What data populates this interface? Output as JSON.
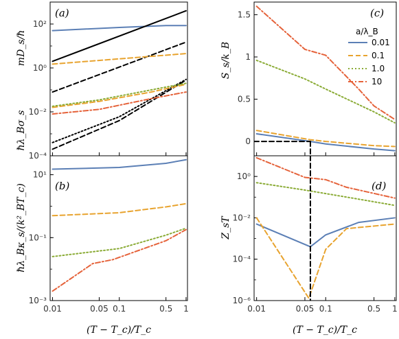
{
  "chart_data": [
    {
      "panel": "a",
      "type": "line",
      "panel_label": "(a)",
      "xscale": "log",
      "yscale": "log",
      "xlim": [
        0.0092,
        1.05
      ],
      "ylim": [
        0.0001,
        1000
      ],
      "xticks": [],
      "yticks": [
        {
          "v": 0.0001,
          "label": "10⁻⁴"
        },
        {
          "v": 0.01,
          "label": "10⁻²"
        },
        {
          "v": 1,
          "label": "10⁰"
        },
        {
          "v": 100,
          "label": "10²"
        }
      ],
      "ylabel_lower": "ħλ_Bσ_s",
      "ylabel_upper": "mD_s/ħ",
      "series": [
        {
          "color": "#5b7fb5",
          "dash": "",
          "points": [
            [
              0.01,
              50
            ],
            [
              0.1,
              70
            ],
            [
              0.5,
              85
            ],
            [
              1,
              85
            ]
          ]
        },
        {
          "color": "#000000",
          "dash": "",
          "points": [
            [
              0.01,
              2
            ],
            [
              1,
              400
            ]
          ]
        },
        {
          "color": "#000000",
          "dash": "7,4",
          "points": [
            [
              0.01,
              0.08
            ],
            [
              1,
              15
            ]
          ]
        },
        {
          "color": "#000000",
          "dash": "7,4",
          "points": [
            [
              0.01,
              0.0002
            ],
            [
              0.1,
              0.004
            ],
            [
              1,
              0.28
            ]
          ]
        },
        {
          "color": "#000000",
          "dash": "2,3",
          "points": [
            [
              0.01,
              0.0004
            ],
            [
              0.1,
              0.006
            ],
            [
              1,
              0.3
            ]
          ]
        },
        {
          "color": "#e8a32e",
          "dash": "7,4",
          "points": [
            [
              0.01,
              1.5
            ],
            [
              1,
              4.5
            ]
          ]
        },
        {
          "color": "#e8a32e",
          "dash": "7,4",
          "points": [
            [
              0.01,
              0.016
            ],
            [
              0.05,
              0.03
            ],
            [
              0.3,
              0.08
            ],
            [
              1,
              0.18
            ]
          ]
        },
        {
          "color": "#8aab35",
          "dash": "2,3",
          "points": [
            [
              0.01,
              0.018
            ],
            [
              0.05,
              0.035
            ],
            [
              0.3,
              0.1
            ],
            [
              1,
              0.2
            ]
          ]
        },
        {
          "color": "#e5623a",
          "dash": "7,3,2,3",
          "points": [
            [
              0.01,
              0.008
            ],
            [
              0.05,
              0.013
            ],
            [
              0.3,
              0.04
            ],
            [
              1,
              0.08
            ]
          ]
        }
      ]
    },
    {
      "panel": "b",
      "type": "line",
      "panel_label": "(b)",
      "xscale": "log",
      "yscale": "log",
      "xlim": [
        0.0092,
        1.05
      ],
      "ylim": [
        0.001,
        40
      ],
      "xticks": [
        {
          "v": 0.01,
          "label": "0.01"
        },
        {
          "v": 0.05,
          "label": "0.05"
        },
        {
          "v": 0.1,
          "label": "0.1"
        },
        {
          "v": 0.5,
          "label": "0.5"
        },
        {
          "v": 1,
          "label": "1"
        }
      ],
      "yticks": [
        {
          "v": 0.001,
          "label": "10⁻³"
        },
        {
          "v": 0.1,
          "label": "10⁻¹"
        },
        {
          "v": 10,
          "label": "10¹"
        }
      ],
      "ylabel": "ħλ_Bκ_s/(k²_BT_c)",
      "xlabel": "(T − T_c)/T_c",
      "series": [
        {
          "color": "#5b7fb5",
          "dash": "",
          "points": [
            [
              0.01,
              15
            ],
            [
              0.1,
              17
            ],
            [
              0.5,
              23
            ],
            [
              1,
              30
            ]
          ]
        },
        {
          "color": "#e8a32e",
          "dash": "7,4",
          "points": [
            [
              0.01,
              0.5
            ],
            [
              0.1,
              0.62
            ],
            [
              0.5,
              0.95
            ],
            [
              1,
              1.2
            ]
          ]
        },
        {
          "color": "#8aab35",
          "dash": "2,3",
          "points": [
            [
              0.01,
              0.025
            ],
            [
              0.1,
              0.045
            ],
            [
              0.5,
              0.12
            ],
            [
              1,
              0.2
            ]
          ]
        },
        {
          "color": "#e5623a",
          "dash": "7,3,2,3",
          "points": [
            [
              0.01,
              0.002
            ],
            [
              0.04,
              0.015
            ],
            [
              0.08,
              0.02
            ],
            [
              0.5,
              0.08
            ],
            [
              1,
              0.18
            ]
          ]
        }
      ]
    },
    {
      "panel": "c",
      "type": "line",
      "panel_label": "(c)",
      "xscale": "log",
      "yscale": "linear",
      "xlim": [
        0.0092,
        1.05
      ],
      "ylim": [
        -0.17,
        1.65
      ],
      "xticks": [],
      "yticks": [
        {
          "v": 0,
          "label": "0"
        },
        {
          "v": 0.5,
          "label": "0.5"
        },
        {
          "v": 1,
          "label": "1"
        },
        {
          "v": 1.5,
          "label": "1.5"
        }
      ],
      "ylabel": "S_s/k_B",
      "legend": {
        "title": "a/λ_B",
        "placement": "upper-right",
        "entries": [
          "0.01",
          "0.1",
          "1.0",
          "10"
        ]
      },
      "series": [
        {
          "color": "#5b7fb5",
          "dash": "",
          "points": [
            [
              0.01,
              0.09
            ],
            [
              0.06,
              0.0
            ],
            [
              0.1,
              -0.03
            ],
            [
              0.5,
              -0.09
            ],
            [
              1,
              -0.11
            ]
          ]
        },
        {
          "color": "#e8a32e",
          "dash": "7,4",
          "points": [
            [
              0.01,
              0.13
            ],
            [
              0.06,
              0.02
            ],
            [
              0.1,
              0.0
            ],
            [
              0.5,
              -0.05
            ],
            [
              1,
              -0.06
            ]
          ]
        },
        {
          "color": "#8aab35",
          "dash": "2,3",
          "points": [
            [
              0.01,
              0.96
            ],
            [
              0.05,
              0.74
            ],
            [
              0.1,
              0.62
            ],
            [
              0.5,
              0.35
            ],
            [
              1,
              0.22
            ]
          ]
        },
        {
          "color": "#e5623a",
          "dash": "7,3,2,3",
          "points": [
            [
              0.01,
              1.6
            ],
            [
              0.05,
              1.09
            ],
            [
              0.1,
              1.02
            ],
            [
              0.3,
              0.62
            ],
            [
              0.5,
              0.42
            ],
            [
              1,
              0.26
            ]
          ]
        },
        {
          "color": "#000000",
          "dash": "7,4",
          "points": [
            [
              0.0092,
              0
            ],
            [
              0.06,
              0
            ]
          ]
        },
        {
          "color": "#000000",
          "dash": "7,4",
          "points": [
            [
              0.06,
              0
            ],
            [
              0.06,
              -0.17
            ]
          ]
        }
      ]
    },
    {
      "panel": "d",
      "type": "line",
      "panel_label": "(d)",
      "xscale": "log",
      "yscale": "log",
      "xlim": [
        0.0092,
        1.05
      ],
      "ylim": [
        1e-06,
        10
      ],
      "xticks": [
        {
          "v": 0.01,
          "label": "0.01"
        },
        {
          "v": 0.05,
          "label": "0.05"
        },
        {
          "v": 0.1,
          "label": "0.1"
        },
        {
          "v": 0.5,
          "label": "0.5"
        },
        {
          "v": 1,
          "label": "1"
        }
      ],
      "yticks": [
        {
          "v": 1e-06,
          "label": "10⁻⁶"
        },
        {
          "v": 0.0001,
          "label": "10⁻⁴"
        },
        {
          "v": 0.01,
          "label": "10⁻²"
        },
        {
          "v": 1,
          "label": "10⁰"
        }
      ],
      "ylabel": "Z_sT",
      "xlabel": "(T − T_c)/T_c",
      "series": [
        {
          "color": "#5b7fb5",
          "dash": "",
          "points": [
            [
              0.01,
              0.005
            ],
            [
              0.06,
              0.0004
            ],
            [
              0.1,
              0.0015
            ],
            [
              0.3,
              0.006
            ],
            [
              1,
              0.01
            ]
          ]
        },
        {
          "color": "#e8a32e",
          "dash": "7,4",
          "points": [
            [
              0.01,
              0.01
            ],
            [
              0.057,
              1.3e-06
            ],
            [
              0.1,
              0.0003
            ],
            [
              0.2,
              0.003
            ],
            [
              1,
              0.005
            ]
          ]
        },
        {
          "color": "#8aab35",
          "dash": "2,3",
          "points": [
            [
              0.01,
              0.5
            ],
            [
              0.05,
              0.22
            ],
            [
              0.3,
              0.08
            ],
            [
              1,
              0.04
            ]
          ]
        },
        {
          "color": "#e5623a",
          "dash": "7,3,2,3",
          "points": [
            [
              0.01,
              8
            ],
            [
              0.05,
              0.9
            ],
            [
              0.1,
              0.7
            ],
            [
              0.2,
              0.3
            ],
            [
              1,
              0.09
            ]
          ]
        },
        {
          "color": "#000000",
          "dash": "7,4",
          "points": [
            [
              0.06,
              10
            ],
            [
              0.06,
              1e-06
            ]
          ]
        }
      ]
    }
  ]
}
